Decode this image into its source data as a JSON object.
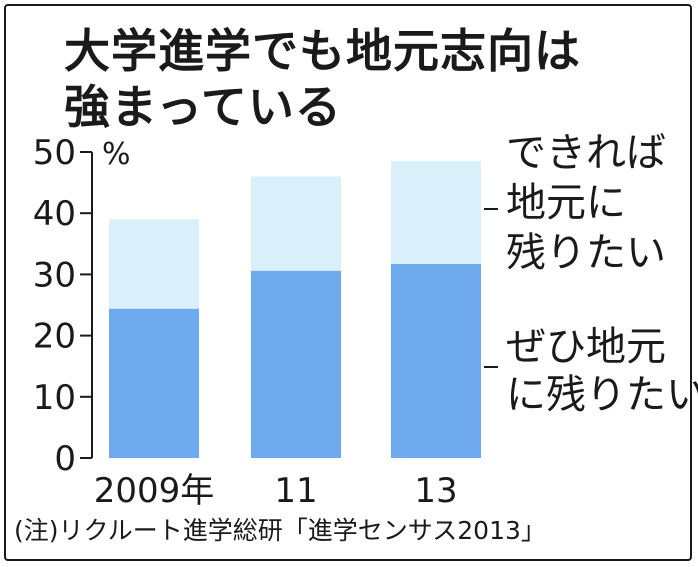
{
  "chart_data": {
    "type": "bar",
    "stacked": true,
    "title": "大学進学でも地元志向は強まっている",
    "title_lines": [
      "大学進学でも地元志向は",
      "強まっている"
    ],
    "ylabel": "%",
    "ylim": [
      0,
      50
    ],
    "yticks": [
      0,
      10,
      20,
      30,
      40,
      50
    ],
    "grid": false,
    "categories": [
      "2009年",
      "11",
      "13"
    ],
    "series": [
      {
        "name": "ぜひ地元に残りたい",
        "label_lines": [
          "ぜひ地元",
          "に残りたい"
        ],
        "values": [
          24.4,
          30.6,
          31.7
        ],
        "color": "#6fa9ee"
      },
      {
        "name": "できれば地元に残りたい",
        "label_lines": [
          "できれば",
          "地元に",
          "残りたい"
        ],
        "values": [
          14.6,
          15.4,
          16.8
        ],
        "color": "#d9f0fa"
      }
    ],
    "legend_placement": "right",
    "note": "(注)リクルート進学総研「進学センサス2013」"
  }
}
